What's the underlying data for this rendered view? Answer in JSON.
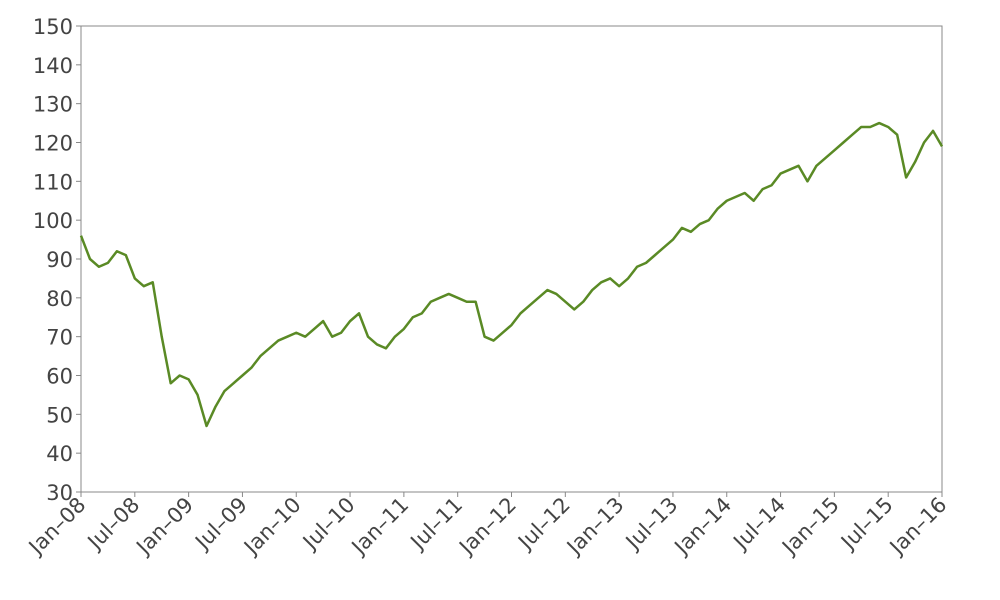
{
  "chart_data": {
    "type": "line",
    "x": [
      "2008-01",
      "2008-02",
      "2008-03",
      "2008-04",
      "2008-05",
      "2008-06",
      "2008-07",
      "2008-08",
      "2008-09",
      "2008-10",
      "2008-11",
      "2008-12",
      "2009-01",
      "2009-02",
      "2009-03",
      "2009-04",
      "2009-05",
      "2009-06",
      "2009-07",
      "2009-08",
      "2009-09",
      "2009-10",
      "2009-11",
      "2009-12",
      "2010-01",
      "2010-02",
      "2010-03",
      "2010-04",
      "2010-05",
      "2010-06",
      "2010-07",
      "2010-08",
      "2010-09",
      "2010-10",
      "2010-11",
      "2010-12",
      "2011-01",
      "2011-02",
      "2011-03",
      "2011-04",
      "2011-05",
      "2011-06",
      "2011-07",
      "2011-08",
      "2011-09",
      "2011-10",
      "2011-11",
      "2011-12",
      "2012-01",
      "2012-02",
      "2012-03",
      "2012-04",
      "2012-05",
      "2012-06",
      "2012-07",
      "2012-08",
      "2012-09",
      "2012-10",
      "2012-11",
      "2012-12",
      "2013-01",
      "2013-02",
      "2013-03",
      "2013-04",
      "2013-05",
      "2013-06",
      "2013-07",
      "2013-08",
      "2013-09",
      "2013-10",
      "2013-11",
      "2013-12",
      "2014-01",
      "2014-02",
      "2014-03",
      "2014-04",
      "2014-05",
      "2014-06",
      "2014-07",
      "2014-08",
      "2014-09",
      "2014-10",
      "2014-11",
      "2014-12",
      "2015-01",
      "2015-02",
      "2015-03",
      "2015-04",
      "2015-05",
      "2015-06",
      "2015-07",
      "2015-08",
      "2015-09",
      "2015-10",
      "2015-11",
      "2015-12",
      "2016-01"
    ],
    "series": [
      {
        "color": "#5a8a25",
        "values": [
          96,
          90,
          88,
          89,
          92,
          91,
          85,
          83,
          84,
          70,
          58,
          60,
          59,
          55,
          47,
          52,
          56,
          58,
          60,
          62,
          65,
          67,
          69,
          70,
          71,
          70,
          72,
          74,
          70,
          71,
          74,
          76,
          70,
          68,
          67,
          70,
          72,
          75,
          76,
          79,
          80,
          81,
          80,
          79,
          79,
          70,
          69,
          71,
          73,
          76,
          78,
          80,
          82,
          81,
          79,
          77,
          79,
          82,
          84,
          85,
          83,
          85,
          88,
          89,
          91,
          93,
          95,
          98,
          97,
          99,
          100,
          103,
          105,
          106,
          107,
          105,
          108,
          109,
          112,
          113,
          114,
          110,
          114,
          116,
          118,
          120,
          122,
          124,
          124,
          125,
          124,
          122,
          111,
          115,
          120,
          123,
          119
        ]
      }
    ],
    "xlim": [
      "2008-01",
      "2016-01"
    ],
    "xticks": [
      {
        "value": "2008-01",
        "label": "Jan–08"
      },
      {
        "value": "2008-07",
        "label": "Jul–08"
      },
      {
        "value": "2009-01",
        "label": "Jan–09"
      },
      {
        "value": "2009-07",
        "label": "Jul–09"
      },
      {
        "value": "2010-01",
        "label": "Jan–10"
      },
      {
        "value": "2010-07",
        "label": "Jul–10"
      },
      {
        "value": "2011-01",
        "label": "Jan–11"
      },
      {
        "value": "2011-07",
        "label": "Jul–11"
      },
      {
        "value": "2012-01",
        "label": "Jan–12"
      },
      {
        "value": "2012-07",
        "label": "Jul–12"
      },
      {
        "value": "2013-01",
        "label": "Jan–13"
      },
      {
        "value": "2013-07",
        "label": "Jul–13"
      },
      {
        "value": "2014-01",
        "label": "Jan–14"
      },
      {
        "value": "2014-07",
        "label": "Jul–14"
      },
      {
        "value": "2015-01",
        "label": "Jan–15"
      },
      {
        "value": "2015-07",
        "label": "Jul–15"
      },
      {
        "value": "2016-01",
        "label": "Jan–16"
      }
    ],
    "ylim": [
      30,
      150
    ],
    "yticks": [
      30,
      40,
      50,
      60,
      70,
      80,
      90,
      100,
      110,
      120,
      130,
      140,
      150
    ],
    "grid": false
  }
}
